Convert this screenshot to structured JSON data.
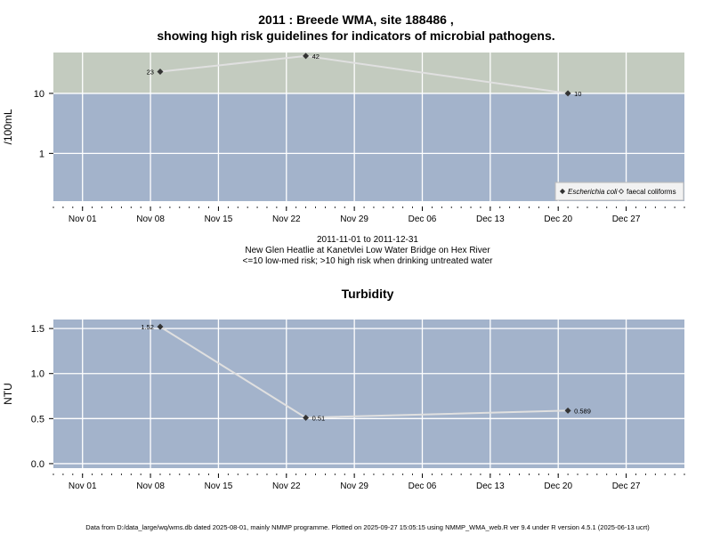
{
  "title_line1": "2011 : Breede WMA, site 188486 ,",
  "title_line2": "showing high risk guidelines for indicators of microbial pathogens.",
  "caption": {
    "line1": "2011-11-01 to 2011-12-31",
    "line2": "New Glen Heatlie at Kanetvlei Low Water Bridge on Hex River",
    "line3": "<=10 low-med risk; >10 high risk when drinking untreated water"
  },
  "turbidity_title": "Turbidity",
  "footer": "Data from D:/data_large/wq/wms.db dated 2025-08-01, mainly NMMP programme. Plotted on 2025-09-27 15:05:15 using NMMP_WMA_web.R ver 9.4 under R version 4.5.1 (2025-06-13 ucrt)",
  "colors": {
    "panel_low": "#a3b3cb",
    "panel_high": "#c3cbbf",
    "grid": "#ffffff",
    "line": "#e0e0e0",
    "point": "#333333"
  },
  "chart_data": [
    {
      "type": "line",
      "ylabel": "/100mL",
      "y_scale": "log",
      "ylim": [
        0.16,
        48
      ],
      "y_ticks": [
        1,
        10
      ],
      "y_tick_labels": [
        "1",
        "10"
      ],
      "x_ticks": [
        "2011-11-01",
        "2011-11-08",
        "2011-11-15",
        "2011-11-22",
        "2011-11-29",
        "2011-12-06",
        "2011-12-13",
        "2011-12-20",
        "2011-12-27"
      ],
      "x_tick_labels": [
        "Nov 01",
        "Nov 08",
        "Nov 15",
        "Nov 22",
        "Nov 29",
        "Dec 06",
        "Dec 13",
        "Dec 20",
        "Dec 27"
      ],
      "xlim": [
        "2011-10-29",
        "2012-01-02"
      ],
      "threshold": 10,
      "threshold_note": "high risk above 10",
      "grid": true,
      "legend_position": "bottom-right",
      "legend": [
        {
          "label": "Escherichia coli",
          "marker": "filled-diamond",
          "italic": true
        },
        {
          "label": "faecal coliforms",
          "marker": "open-diamond",
          "italic": false
        }
      ],
      "series": [
        {
          "name": "Escherichia coli",
          "x": [
            "2011-11-09",
            "2011-11-24",
            "2011-12-21"
          ],
          "values": [
            23,
            42,
            10
          ],
          "labels": [
            "23",
            "42",
            "10"
          ],
          "label_side": [
            "left",
            "right",
            "right"
          ]
        }
      ]
    },
    {
      "type": "line",
      "title": "Turbidity",
      "ylabel": "NTU",
      "ylim": [
        -0.05,
        1.6
      ],
      "y_ticks": [
        0,
        0.5,
        1,
        1.5
      ],
      "y_tick_labels": [
        "0.0",
        "0.5",
        "1.0",
        "1.5"
      ],
      "x_ticks": [
        "2011-11-01",
        "2011-11-08",
        "2011-11-15",
        "2011-11-22",
        "2011-11-29",
        "2011-12-06",
        "2011-12-13",
        "2011-12-20",
        "2011-12-27"
      ],
      "x_tick_labels": [
        "Nov 01",
        "Nov 08",
        "Nov 15",
        "Nov 22",
        "Nov 29",
        "Dec 06",
        "Dec 13",
        "Dec 20",
        "Dec 27"
      ],
      "xlim": [
        "2011-10-29",
        "2012-01-02"
      ],
      "grid": true,
      "series": [
        {
          "x": [
            "2011-11-09",
            "2011-11-24",
            "2011-12-21"
          ],
          "values": [
            1.52,
            0.51,
            0.589
          ],
          "labels": [
            "1.52",
            "0.51",
            "0.589"
          ],
          "label_side": [
            "left",
            "right",
            "right"
          ]
        }
      ]
    }
  ]
}
